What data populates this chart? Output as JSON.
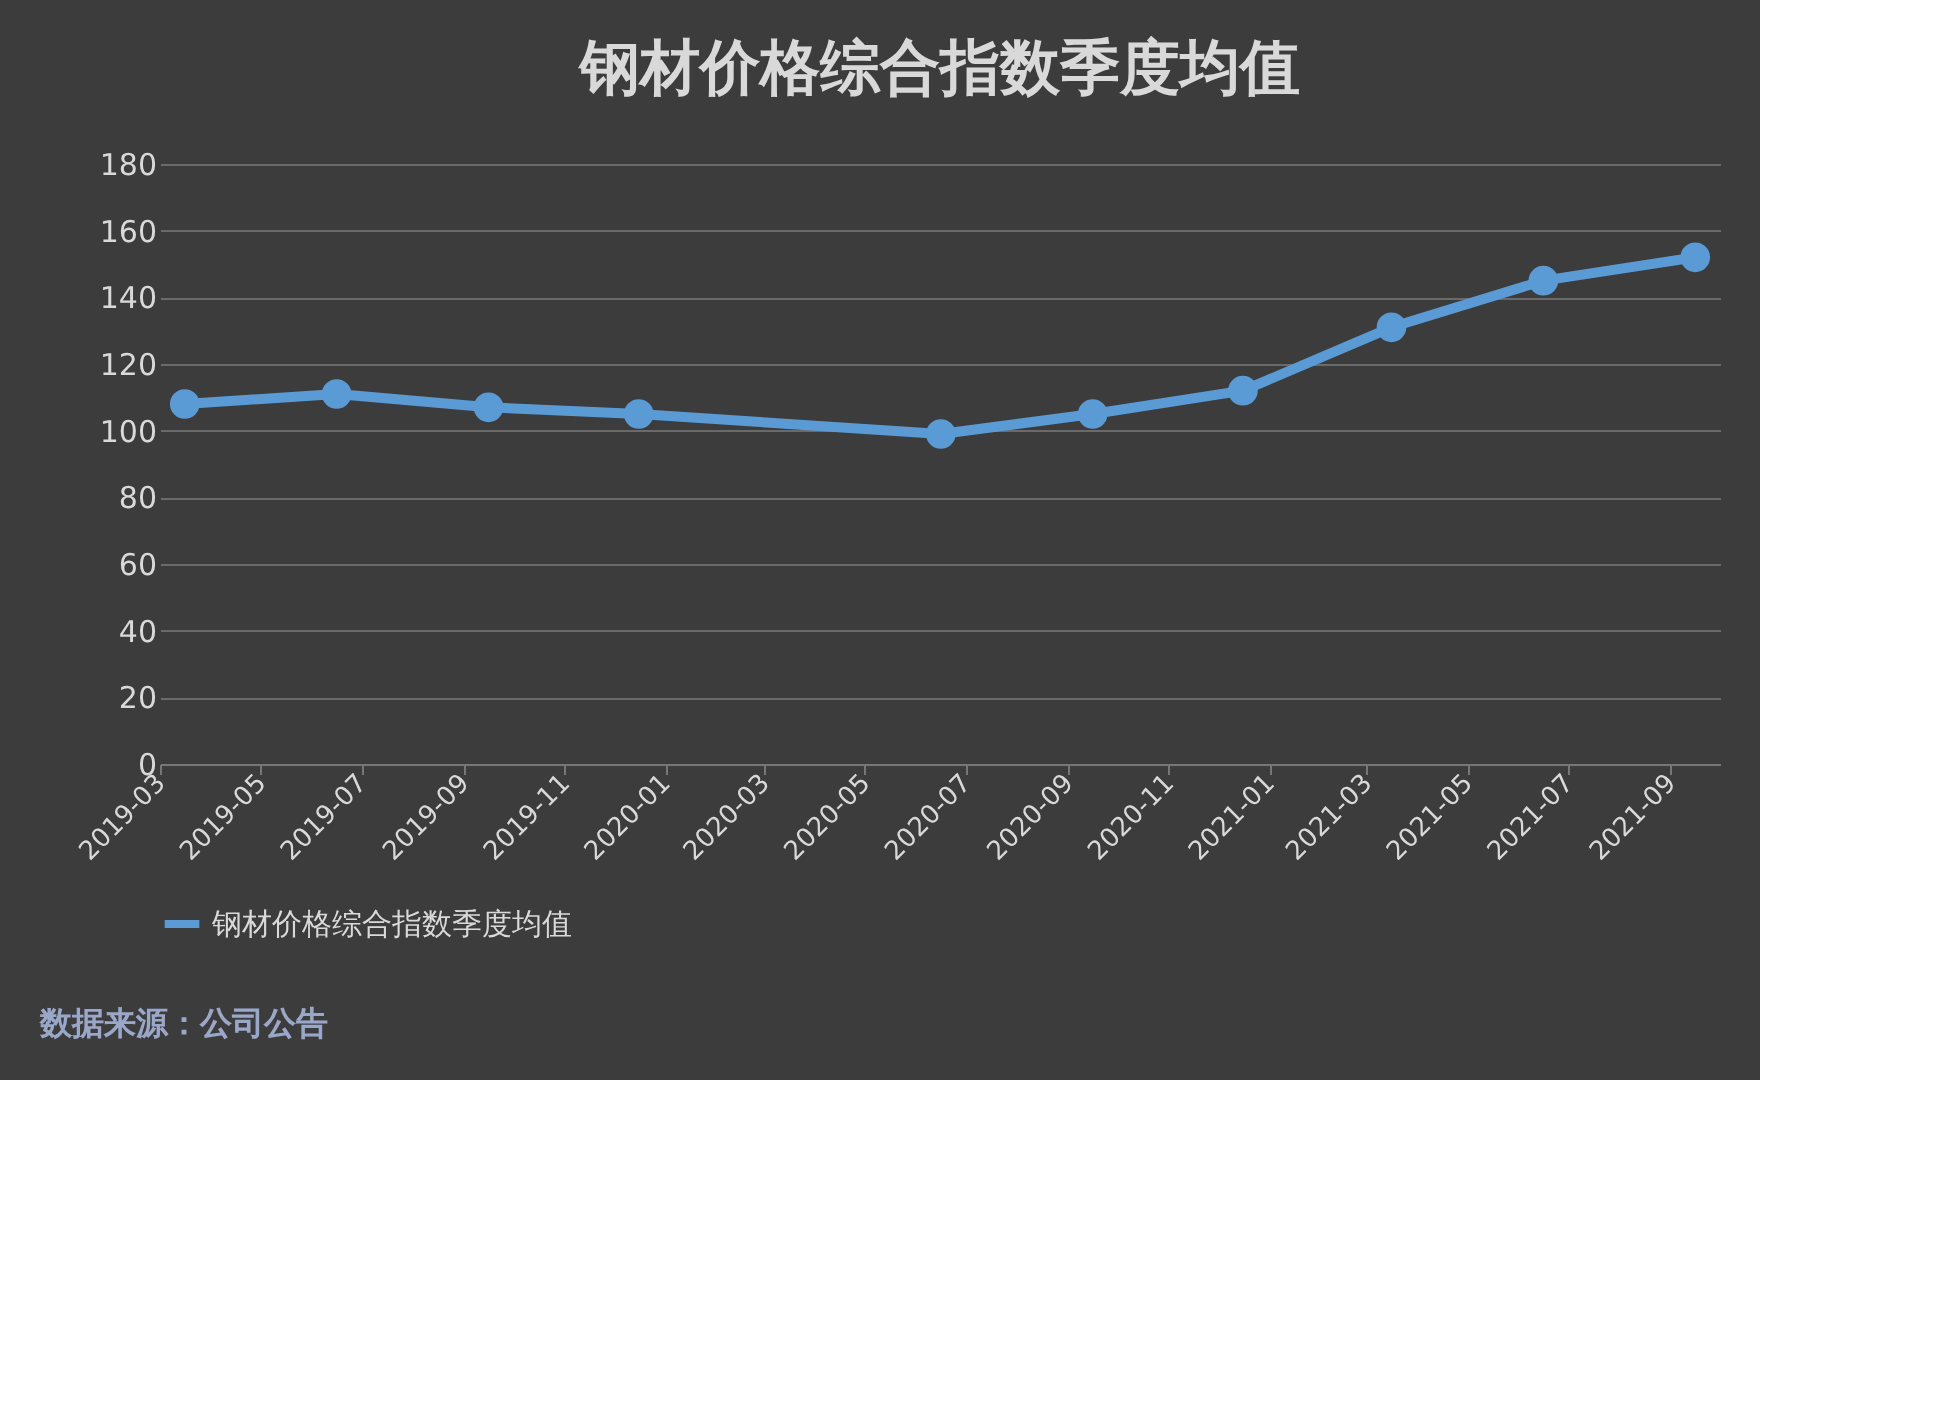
{
  "chart_data": {
    "type": "line",
    "title": "钢材价格综合指数季度均值",
    "x": [
      "2019-03-16",
      "2019-06-16",
      "2019-09-16",
      "2019-12-16",
      "2020-06-16",
      "2020-09-16",
      "2020-12-16",
      "2021-03-16",
      "2021-06-16",
      "2021-09-16"
    ],
    "series": [
      {
        "name": "钢材价格综合指数季度均值",
        "color": "#5b9bd5",
        "values": [
          108,
          111,
          107,
          105,
          99,
          105,
          112,
          131,
          145,
          152
        ]
      }
    ],
    "xlim": [
      "2019-03-01",
      "2021-10-01"
    ],
    "xticks": [
      "2019-03",
      "2019-05",
      "2019-07",
      "2019-09",
      "2019-11",
      "2020-01",
      "2020-03",
      "2020-05",
      "2020-07",
      "2020-09",
      "2020-11",
      "2021-01",
      "2021-03",
      "2021-05",
      "2021-07",
      "2021-09"
    ],
    "ylim": [
      0,
      180
    ],
    "yticks": [
      0,
      20,
      40,
      60,
      80,
      100,
      120,
      140,
      160,
      180
    ],
    "grid": "y",
    "legend": "bottom",
    "marker": "circle",
    "line_style": "solid",
    "annotations": [
      "数据来源：公司公告"
    ]
  }
}
